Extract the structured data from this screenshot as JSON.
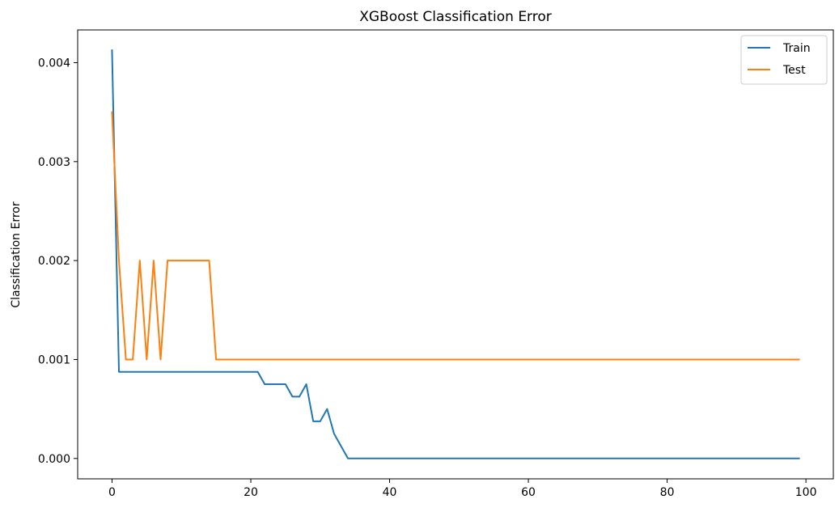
{
  "chart_data": {
    "type": "line",
    "title": "XGBoost Classification Error",
    "xlabel": "",
    "ylabel": "Classification Error",
    "xlim": [
      -4.95,
      103.95
    ],
    "ylim": [
      -0.000206,
      0.004331
    ],
    "x_ticks": [
      0,
      20,
      40,
      60,
      80,
      100
    ],
    "y_ticks": [
      0.0,
      0.001,
      0.002,
      0.003,
      0.004
    ],
    "x_tick_labels": [
      "0",
      "20",
      "40",
      "60",
      "80",
      "100"
    ],
    "y_tick_labels": [
      "0.000",
      "0.001",
      "0.002",
      "0.003",
      "0.004"
    ],
    "grid": false,
    "legend_position": "top-right",
    "series": [
      {
        "name": "Train",
        "color": "#1f77b4",
        "points": [
          [
            0,
            0.004125
          ],
          [
            1,
            0.000875
          ],
          [
            21,
            0.000875
          ],
          [
            22,
            0.00075
          ],
          [
            25,
            0.00075
          ],
          [
            26,
            0.000625
          ],
          [
            27,
            0.000625
          ],
          [
            28,
            0.00075
          ],
          [
            29,
            0.000375
          ],
          [
            30,
            0.000375
          ],
          [
            31,
            0.0005
          ],
          [
            32,
            0.00025
          ],
          [
            34,
            0.0
          ],
          [
            99,
            0.0
          ]
        ]
      },
      {
        "name": "Test",
        "color": "#ff7f0e",
        "points": [
          [
            0,
            0.0035
          ],
          [
            1,
            0.002
          ],
          [
            2,
            0.001
          ],
          [
            3,
            0.001
          ],
          [
            4,
            0.002
          ],
          [
            5,
            0.001
          ],
          [
            6,
            0.002
          ],
          [
            7,
            0.001
          ],
          [
            8,
            0.002
          ],
          [
            14,
            0.002
          ],
          [
            15,
            0.001
          ],
          [
            99,
            0.001
          ]
        ]
      }
    ]
  }
}
